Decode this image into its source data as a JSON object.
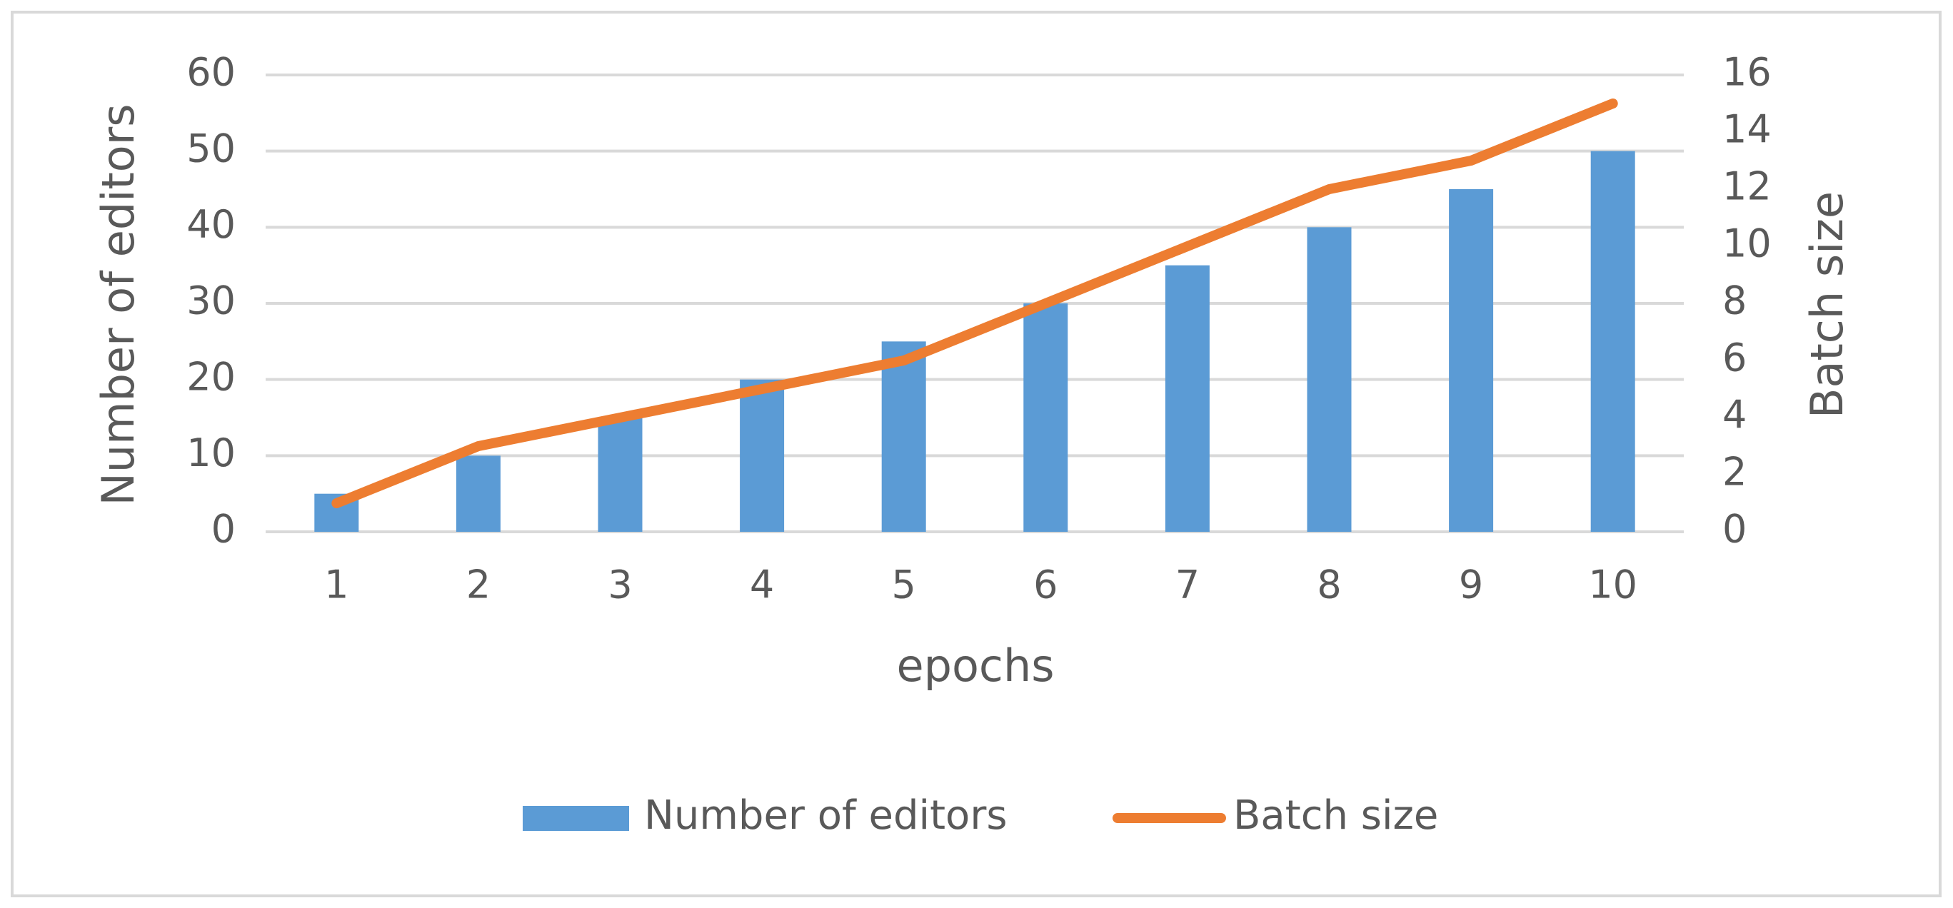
{
  "chart_data": {
    "type": "bar_line",
    "categories": [
      "1",
      "2",
      "3",
      "4",
      "5",
      "6",
      "7",
      "8",
      "9",
      "10"
    ],
    "series": [
      {
        "name": "Number of editors",
        "color": "#5b9bd5",
        "type": "bar",
        "values": [
          5,
          10,
          15,
          20,
          25,
          30,
          35,
          40,
          45,
          50
        ]
      },
      {
        "name": "Batch size",
        "color": "#ed7d31",
        "type": "line",
        "axis": "y2",
        "values": [
          1,
          3,
          4,
          5,
          6,
          8,
          10,
          12,
          13,
          15
        ]
      }
    ],
    "xlabel": "epochs",
    "ylabel": "Number of editors",
    "y2label": "Batch size",
    "ylim": [
      0,
      60
    ],
    "yticks": [
      0,
      10,
      20,
      30,
      40,
      50,
      60
    ],
    "y2lim": [
      0,
      16
    ],
    "y2ticks": [
      0,
      2,
      4,
      6,
      8,
      10,
      12,
      14,
      16
    ],
    "grid": true,
    "legend": "bottom"
  }
}
